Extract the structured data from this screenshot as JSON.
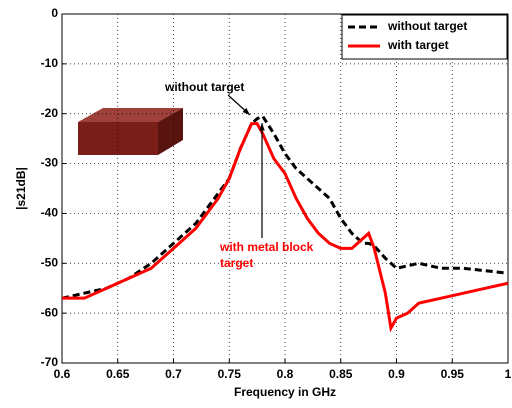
{
  "chart_data": {
    "type": "line",
    "xlabel": "Frequency in GHz",
    "ylabel": "|s21dB|",
    "x": [
      0.6,
      0.62,
      0.64,
      0.66,
      0.68,
      0.7,
      0.72,
      0.74,
      0.75,
      0.76,
      0.77,
      0.775,
      0.78,
      0.79,
      0.8,
      0.81,
      0.82,
      0.83,
      0.84,
      0.85,
      0.86,
      0.87,
      0.875,
      0.88,
      0.89,
      0.895,
      0.9,
      0.91,
      0.92,
      0.94,
      0.96,
      0.98,
      1.0
    ],
    "series": [
      {
        "name": "without target",
        "color": "#000000",
        "dashed": true,
        "values": [
          -57,
          -56,
          -55,
          -53,
          -50,
          -46,
          -42,
          -36,
          -33,
          -27,
          -22,
          -21,
          -20.5,
          -24,
          -28,
          -31,
          -33,
          -35,
          -37,
          -41,
          -44,
          -46,
          -46,
          -46.5,
          -49,
          -50,
          -51,
          -50.5,
          -50,
          -51,
          -51,
          -51.5,
          -52
        ]
      },
      {
        "name": "with target",
        "color": "#ff0000",
        "dashed": false,
        "values": [
          -57,
          -57,
          -55,
          -53,
          -51,
          -47,
          -43,
          -37,
          -33,
          -27,
          -22,
          -22,
          -24,
          -29,
          -32,
          -37,
          -41,
          -44,
          -46,
          -47,
          -47,
          -45,
          -44,
          -47,
          -56,
          -63,
          -61,
          -60,
          -58,
          -57,
          -56,
          -55,
          -54
        ]
      }
    ],
    "xlim": [
      0.6,
      1
    ],
    "xticks": [
      0.6,
      0.65,
      0.7,
      0.75,
      0.8,
      0.85,
      0.9,
      0.95,
      1
    ],
    "ylim": [
      -70,
      0
    ],
    "yticks": [
      -70,
      -60,
      -50,
      -40,
      -30,
      -20,
      -10,
      0
    ],
    "grid": true,
    "legend": "upper right",
    "annotations": [
      {
        "lines": [
          "without target"
        ],
        "color": "#000000"
      },
      {
        "lines": [
          "with metal block",
          "target"
        ],
        "color": "#ff0000"
      }
    ]
  }
}
